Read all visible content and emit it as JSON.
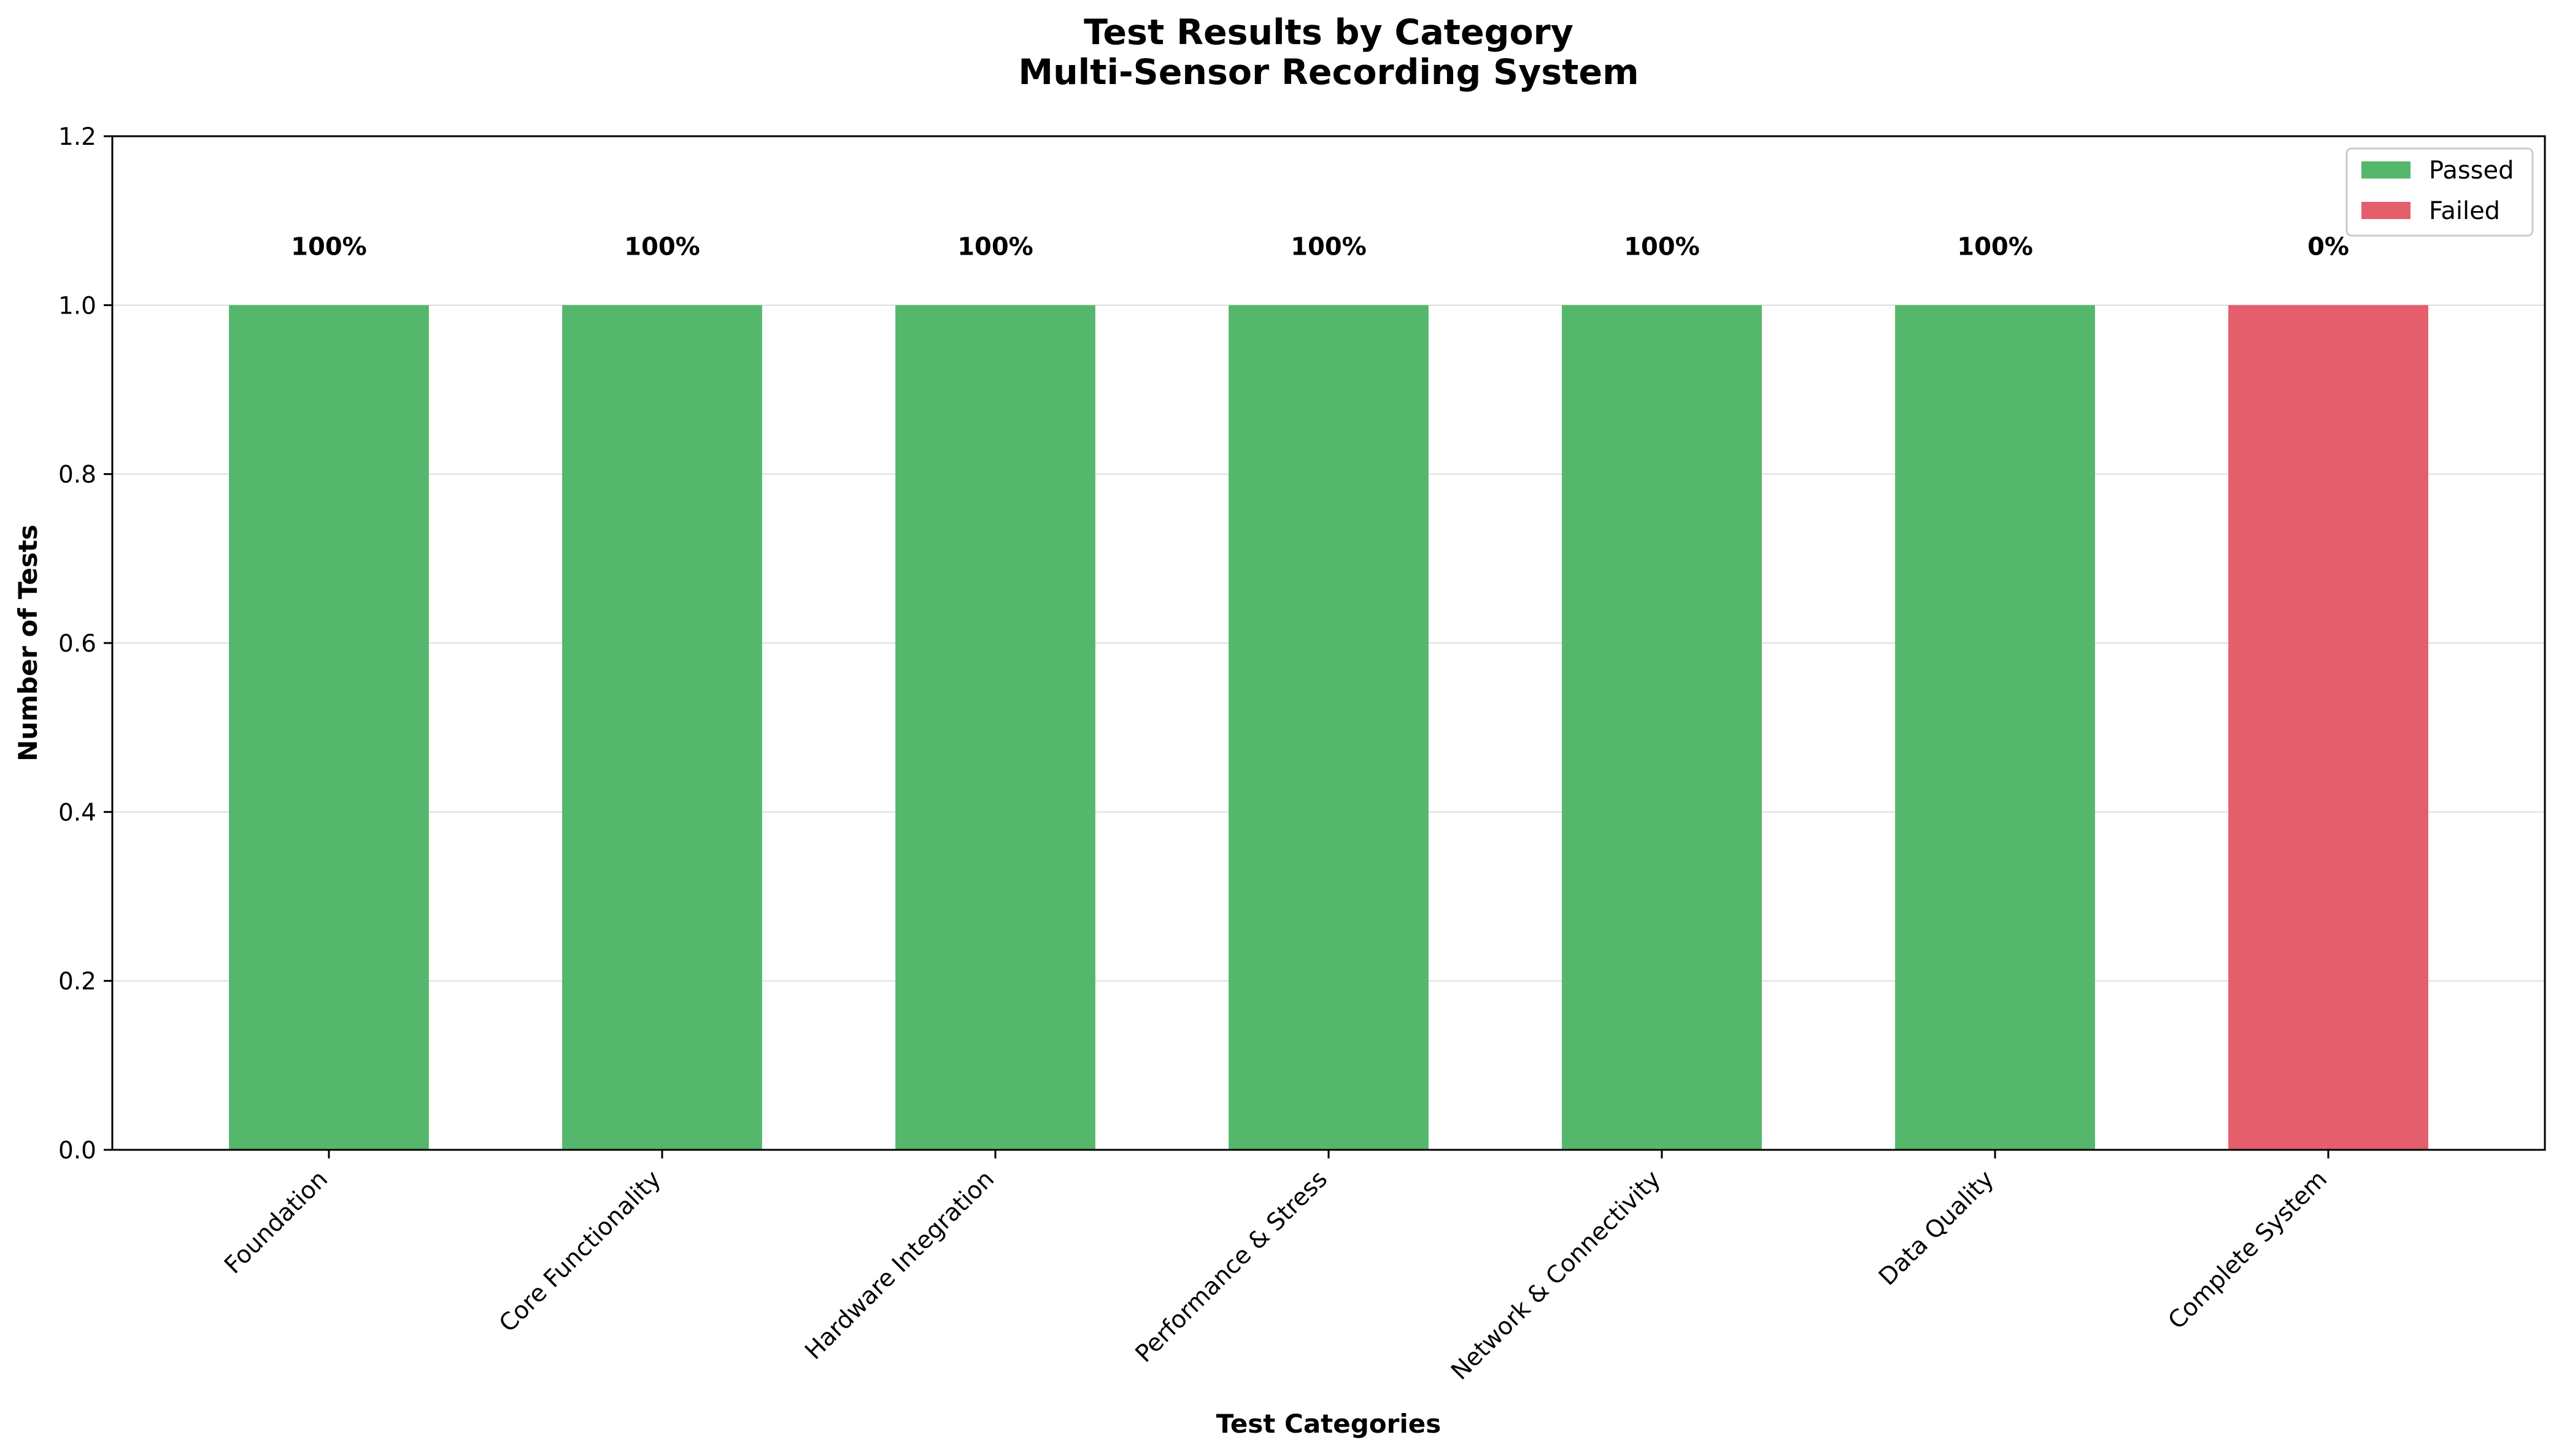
{
  "chart_data": {
    "type": "bar",
    "title_lines": [
      "Test Results by Category",
      "Multi-Sensor Recording System"
    ],
    "xlabel": "Test Categories",
    "ylabel": "Number of Tests",
    "categories": [
      "Foundation",
      "Core Functionality",
      "Hardware Integration",
      "Performance & Stress",
      "Network & Connectivity",
      "Data Quality",
      "Complete System"
    ],
    "series": [
      {
        "name": "Passed",
        "color": "#55b76b",
        "values": [
          1,
          1,
          1,
          1,
          1,
          1,
          0
        ]
      },
      {
        "name": "Failed",
        "color": "#e45e6c",
        "values": [
          0,
          0,
          0,
          0,
          0,
          0,
          1
        ]
      }
    ],
    "stacked": true,
    "data_labels": [
      "100%",
      "100%",
      "100%",
      "100%",
      "100%",
      "100%",
      "0%"
    ],
    "ylim": [
      0,
      1.2
    ],
    "yticks": [
      "0.0",
      "0.2",
      "0.4",
      "0.6",
      "0.8",
      "1.0",
      "1.2"
    ],
    "grid": "y",
    "legend_position": "top-right"
  }
}
